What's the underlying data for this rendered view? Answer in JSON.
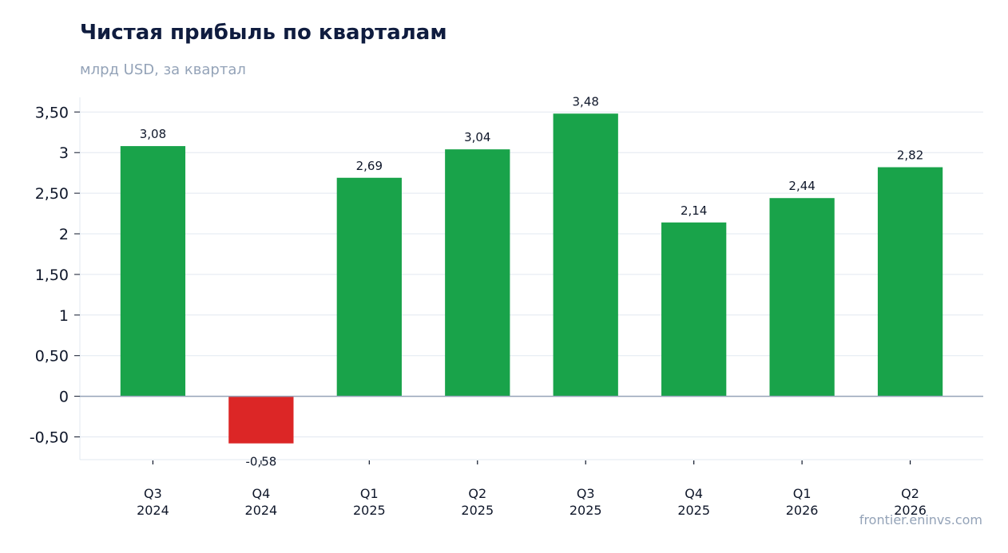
{
  "header": {
    "title": "Чистая прибыль по кварталам",
    "subtitle": "млрд USD, за квартал"
  },
  "footer": {
    "source": "frontier.eninvs.com"
  },
  "colors": {
    "positive": "#19a34a",
    "negative": "#dc2626",
    "grid": "#e2e8f0",
    "zero_line": "#94a3b8"
  },
  "chart_data": {
    "type": "bar",
    "title": "Чистая прибыль по кварталам",
    "subtitle": "млрд USD, за квартал",
    "categories": [
      [
        "Q3",
        "2024"
      ],
      [
        "Q4",
        "2024"
      ],
      [
        "Q1",
        "2025"
      ],
      [
        "Q2",
        "2025"
      ],
      [
        "Q3",
        "2025"
      ],
      [
        "Q4",
        "2025"
      ],
      [
        "Q1",
        "2026"
      ],
      [
        "Q2",
        "2026"
      ]
    ],
    "values": [
      3.08,
      -0.58,
      2.69,
      3.04,
      3.48,
      2.14,
      2.44,
      2.82
    ],
    "value_labels": [
      "3,08",
      "-0,58",
      "2,69",
      "3,04",
      "3,48",
      "2,14",
      "2,44",
      "2,82"
    ],
    "yticks": [
      -0.5,
      0,
      0.5,
      1,
      1.5,
      2,
      2.5,
      3,
      3.5
    ],
    "ytick_labels": [
      "-0,50",
      "0",
      "0,50",
      "1",
      "1,50",
      "2",
      "2,50",
      "3",
      "3,50"
    ],
    "ylim": [
      -0.78,
      3.68
    ],
    "xlabel": "",
    "ylabel": "",
    "grid": true,
    "legend": "none"
  }
}
